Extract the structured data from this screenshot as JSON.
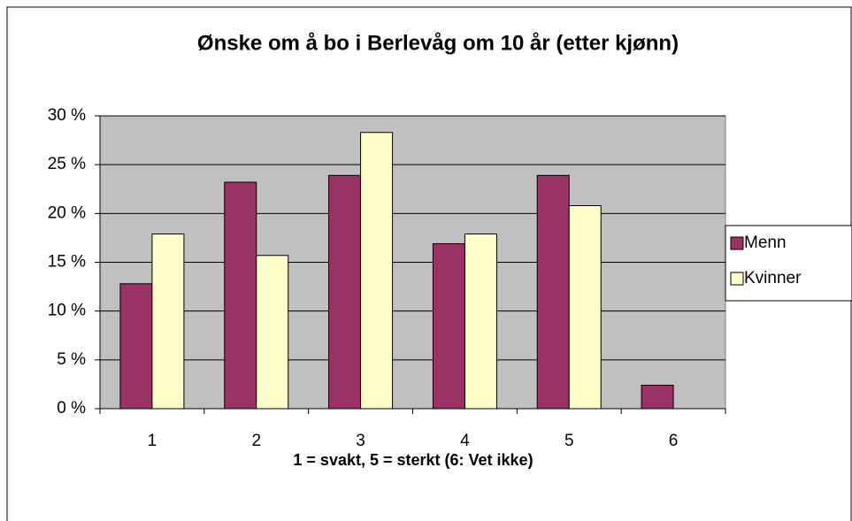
{
  "chart_data": {
    "type": "bar",
    "title": "Ønske om å bo i Berlevåg om 10 år (etter kjønn)",
    "x_label": "1 = svakt, 5 = sterkt (6: Vet ikke)",
    "categories": [
      "1",
      "2",
      "3",
      "4",
      "5",
      "6"
    ],
    "series": [
      {
        "name": "Menn",
        "color": "#993366",
        "values": [
          12.8,
          23.2,
          23.9,
          16.9,
          23.9,
          2.4
        ]
      },
      {
        "name": "Kvinner",
        "color": "#FFFFCC",
        "values": [
          17.9,
          15.7,
          28.3,
          17.9,
          20.8,
          null
        ]
      }
    ],
    "ylim": [
      0,
      30
    ],
    "yticks": [
      {
        "value": 0,
        "label": "0 %"
      },
      {
        "value": 5,
        "label": "5 %"
      },
      {
        "value": 10,
        "label": "10 %"
      },
      {
        "value": 15,
        "label": "15 %"
      },
      {
        "value": 20,
        "label": "20 %"
      },
      {
        "value": 25,
        "label": "25 %"
      },
      {
        "value": 30,
        "label": "30 %"
      }
    ],
    "grid": true,
    "legend": "right"
  }
}
